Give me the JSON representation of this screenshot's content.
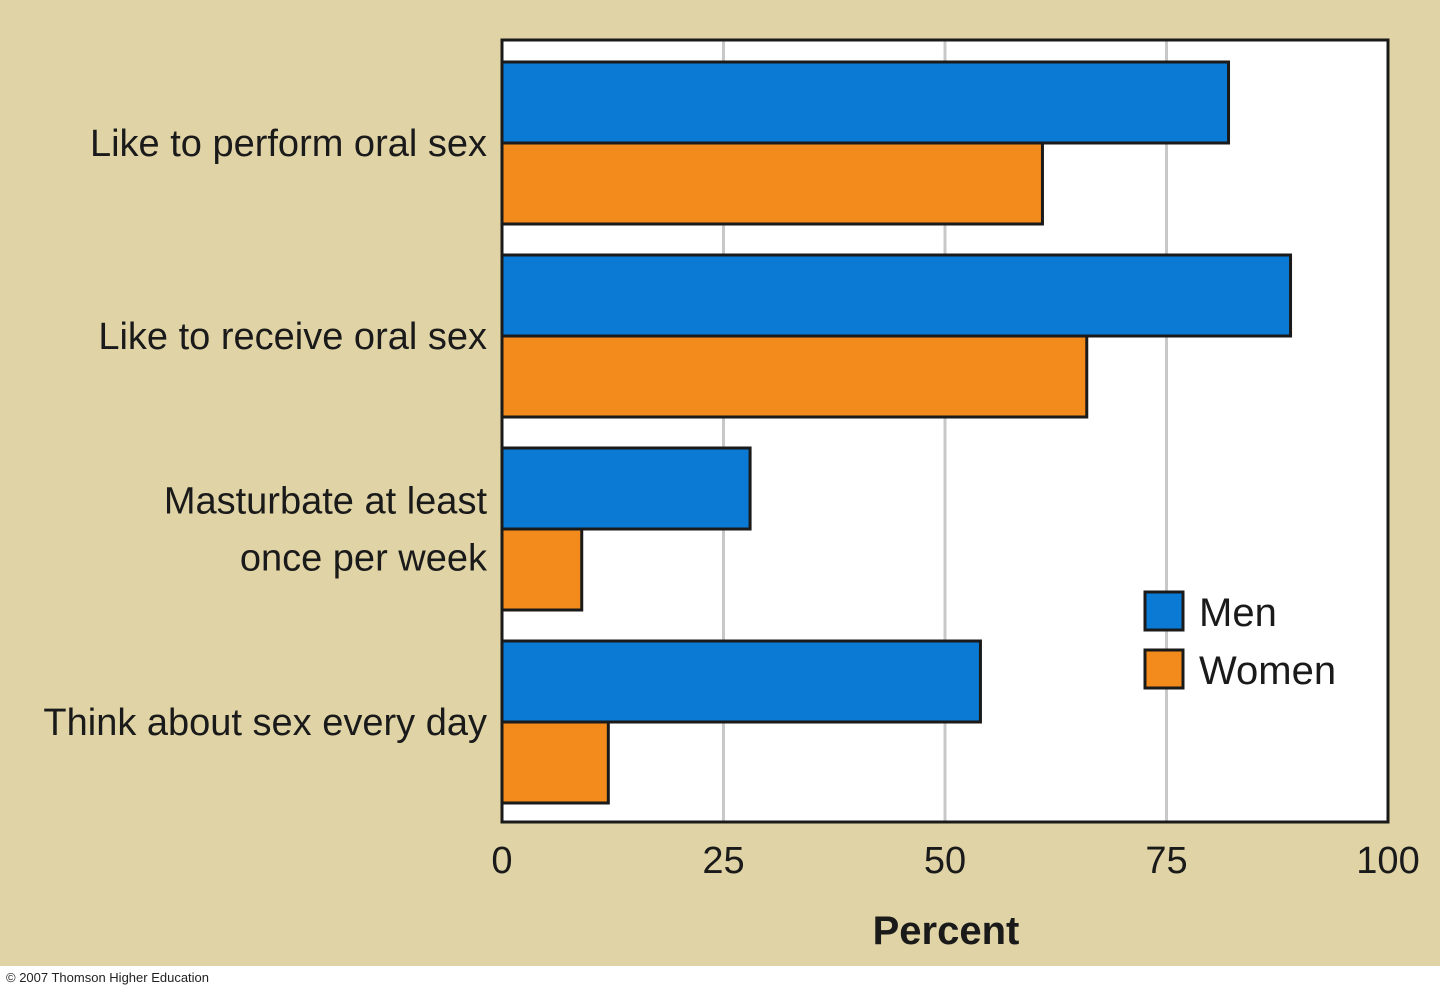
{
  "chart_data": {
    "type": "bar",
    "orientation": "horizontal",
    "categories": [
      "Like to perform oral sex",
      "Like to receive oral sex",
      "Masturbate at least once per week",
      "Think about sex every day"
    ],
    "category_lines": [
      [
        "Like to perform oral sex"
      ],
      [
        "Like to receive oral sex"
      ],
      [
        "Masturbate at least",
        "once per week"
      ],
      [
        "Think about sex every day"
      ]
    ],
    "series": [
      {
        "name": "Men",
        "values": [
          82,
          89,
          28,
          54
        ],
        "color": "#0a7ad4"
      },
      {
        "name": "Women",
        "values": [
          61,
          66,
          9,
          12
        ],
        "color": "#f38b1c"
      }
    ],
    "xlabel": "Percent",
    "ylabel": "",
    "xlim": [
      0,
      100
    ],
    "xticks": [
      0,
      25,
      50,
      75,
      100
    ],
    "grid": "vertical",
    "grid_color": "#c8c8c8",
    "legend_position": "bottom-right"
  },
  "colors": {
    "background": "#e0d4a6",
    "plot_background": "#ffffff"
  },
  "copyright": "© 2007 Thomson Higher Education"
}
